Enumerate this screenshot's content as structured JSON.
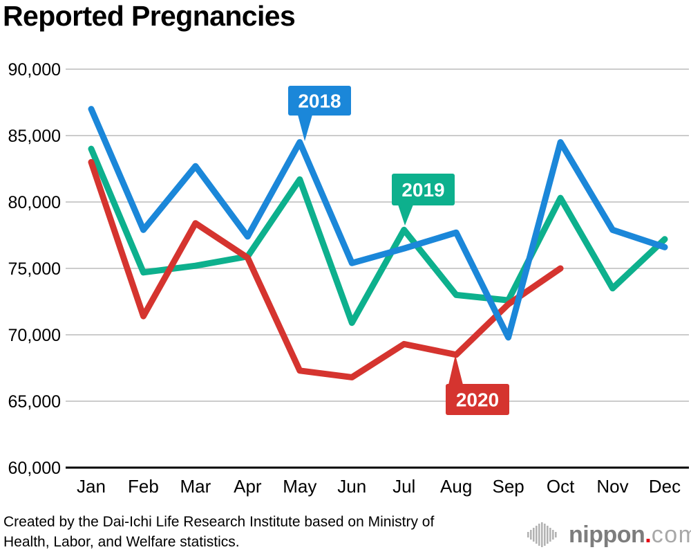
{
  "title": "Reported Pregnancies",
  "chart_data": {
    "type": "line",
    "title": "Reported Pregnancies",
    "categories": [
      "Jan",
      "Feb",
      "Mar",
      "Apr",
      "May",
      "Jun",
      "Jul",
      "Aug",
      "Sep",
      "Oct",
      "Nov",
      "Dec"
    ],
    "series": [
      {
        "name": "2018",
        "color": "#1B87D9",
        "values": [
          87000,
          77900,
          82700,
          77400,
          84500,
          75400,
          76500,
          77700,
          69800,
          84500,
          77900,
          76600
        ]
      },
      {
        "name": "2019",
        "color": "#0DB08D",
        "values": [
          84000,
          74700,
          75200,
          75900,
          81700,
          70900,
          77900,
          73000,
          72600,
          80300,
          73500,
          77200
        ]
      },
      {
        "name": "2020",
        "color": "#D5342F",
        "values": [
          83000,
          71400,
          78400,
          75800,
          67300,
          66800,
          69300,
          68500,
          72300,
          75000
        ]
      }
    ],
    "ylim": [
      60000,
      90000
    ],
    "ytick_step": 5000,
    "ytick_labels": [
      "90,000",
      "85,000",
      "80,000",
      "75,000",
      "70,000",
      "65,000",
      "60,000"
    ],
    "grid": true,
    "legend_position": "inline-callouts",
    "annotations": [
      {
        "label": "2018",
        "series": "2018",
        "points_to": "May peak"
      },
      {
        "label": "2019",
        "series": "2019",
        "points_to": "Jul peak"
      },
      {
        "label": "2020",
        "series": "2020",
        "points_to": "Aug point"
      }
    ]
  },
  "colors": {
    "blue_2018": "#1B87D9",
    "green_2019": "#0DB08D",
    "red_2020": "#D5342F",
    "gridline": "#CCCCCC",
    "axis": "#000000",
    "callout_text": "#FFFFFF"
  },
  "footer": {
    "attribution_line1": "Created by the Dai-Ichi Life Research Institute based on Ministry of",
    "attribution_line2": "Health, Labor, and Welfare statistics.",
    "logo": {
      "icon": "soundwave-icon",
      "name": "nippon",
      "dot": ".",
      "tld": "com",
      "dot_color": "#E60012"
    }
  }
}
